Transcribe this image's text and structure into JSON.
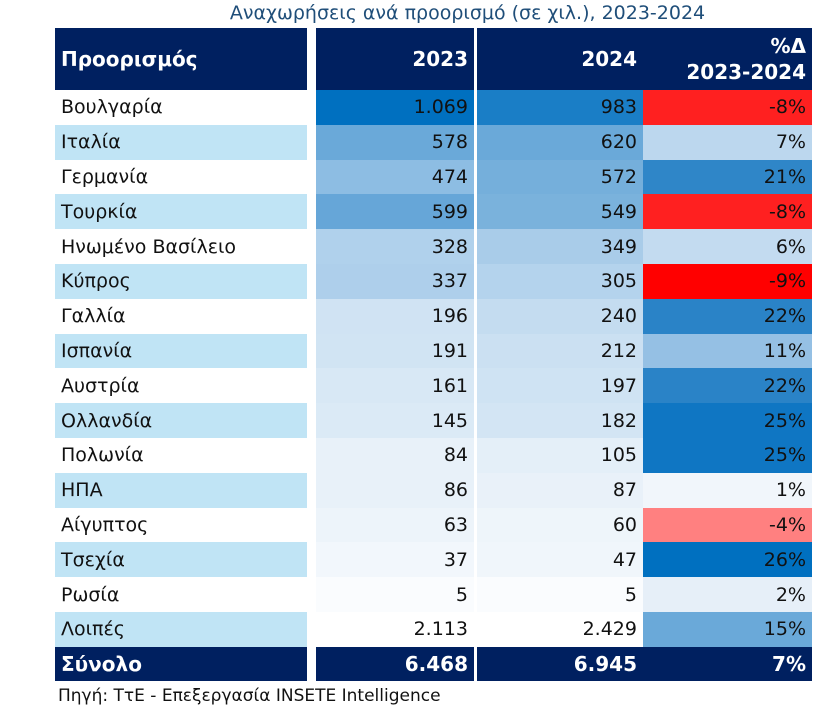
{
  "title": "Αναχωρήσεις ανά προορισμό (σε χιλ.), 2023-2024",
  "source": "Πηγή: ΤτΕ - Επεξεργασία INSETE Intelligence",
  "colors": {
    "header": "#002060",
    "label_alt": "#c0e4f5"
  },
  "chart_data": {
    "type": "table",
    "headers": [
      "Προορισμός",
      "2023",
      "2024",
      "%Δ",
      "2023-2024"
    ],
    "rows": [
      {
        "name": "Βουλγαρία",
        "v2023": "1.069",
        "v2024": "983",
        "pct": "-8%",
        "colors": [
          "#0070c0",
          "#1a7ec6",
          "#ff2020"
        ]
      },
      {
        "name": "Ιταλία",
        "v2023": "578",
        "v2024": "620",
        "pct": "7%",
        "colors": [
          "#6aa9d9",
          "#6aa9d9",
          "#bcd7ee"
        ]
      },
      {
        "name": "Γερμανία",
        "v2023": "474",
        "v2024": "572",
        "pct": "21%",
        "colors": [
          "#8dbde3",
          "#75afdb",
          "#2f86c8"
        ]
      },
      {
        "name": "Τουρκία",
        "v2023": "599",
        "v2024": "549",
        "pct": "-8%",
        "colors": [
          "#66a6d8",
          "#7ab2dc",
          "#ff2020"
        ]
      },
      {
        "name": "Ηνωμένο Βασίλειο",
        "v2023": "328",
        "v2024": "349",
        "pct": "6%",
        "colors": [
          "#b0d1ec",
          "#a9cce9",
          "#c3dbf0"
        ]
      },
      {
        "name": "Κύπρος",
        "v2023": "337",
        "v2024": "305",
        "pct": "-9%",
        "colors": [
          "#aecfeb",
          "#b4d3ed",
          "#ff0000"
        ]
      },
      {
        "name": "Γαλλία",
        "v2023": "196",
        "v2024": "240",
        "pct": "22%",
        "colors": [
          "#d0e3f3",
          "#c4dcf0",
          "#2a83c7"
        ]
      },
      {
        "name": "Ισπανία",
        "v2023": "191",
        "v2024": "212",
        "pct": "11%",
        "colors": [
          "#d1e4f3",
          "#cbe0f2",
          "#95c0e4"
        ]
      },
      {
        "name": "Αυστρία",
        "v2023": "161",
        "v2024": "197",
        "pct": "22%",
        "colors": [
          "#d8e8f5",
          "#cfe3f3",
          "#2a83c7"
        ]
      },
      {
        "name": "Ολλανδία",
        "v2023": "145",
        "v2024": "182",
        "pct": "25%",
        "colors": [
          "#dbeaf6",
          "#d3e5f4",
          "#0f76c3"
        ]
      },
      {
        "name": "Πολωνία",
        "v2023": "84",
        "v2024": "105",
        "pct": "25%",
        "colors": [
          "#e8f1f9",
          "#e4eff8",
          "#0f76c3"
        ]
      },
      {
        "name": "ΗΠΑ",
        "v2023": "86",
        "v2024": "87",
        "pct": "1%",
        "colors": [
          "#e8f1f9",
          "#e9f1f9",
          "#f1f6fb"
        ]
      },
      {
        "name": "Αίγυπτος",
        "v2023": "63",
        "v2024": "60",
        "pct": "-4%",
        "colors": [
          "#edf4fa",
          "#eef5fa",
          "#ff8080"
        ]
      },
      {
        "name": "Τσεχία",
        "v2023": "37",
        "v2024": "47",
        "pct": "26%",
        "colors": [
          "#f2f7fc",
          "#f0f6fb",
          "#0070c0"
        ]
      },
      {
        "name": "Ρωσία",
        "v2023": "5",
        "v2024": "5",
        "pct": "2%",
        "colors": [
          "#fafcfe",
          "#fafcfe",
          "#e6eff8"
        ]
      },
      {
        "name": "Λοιπές",
        "v2023": "2.113",
        "v2024": "2.429",
        "pct": "15%",
        "colors": [
          "#ffffff",
          "#ffffff",
          "#6aa9d9"
        ]
      }
    ],
    "total": {
      "name": "Σύνολο",
      "v2023": "6.468",
      "v2024": "6.945",
      "pct": "7%"
    }
  }
}
